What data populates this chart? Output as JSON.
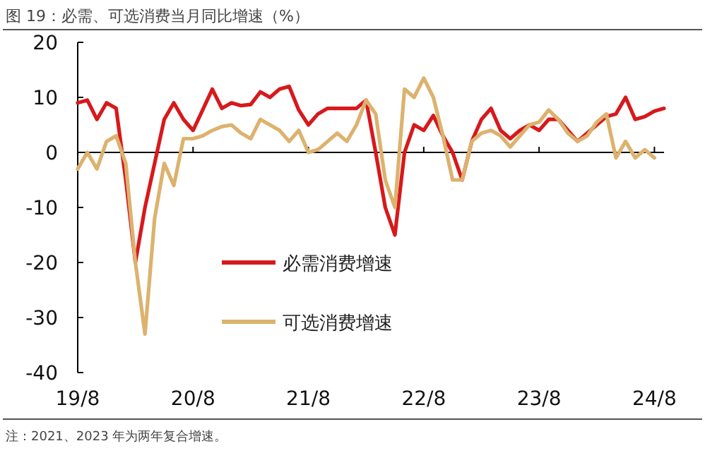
{
  "chart_data": {
    "type": "line",
    "title": "图 19：必需、可选消费当月同比增速（%）",
    "annotations": [
      "注：2021、2023 年为两年复合增速。"
    ],
    "x": [
      "2019-08",
      "2019-09",
      "2019-10",
      "2019-11",
      "2019-12",
      "2020-01",
      "2020-02",
      "2020-03",
      "2020-04",
      "2020-05",
      "2020-06",
      "2020-07",
      "2020-08",
      "2020-09",
      "2020-10",
      "2020-11",
      "2020-12",
      "2021-01",
      "2021-02",
      "2021-03",
      "2021-04",
      "2021-05",
      "2021-06",
      "2021-07",
      "2021-08",
      "2021-09",
      "2021-10",
      "2021-11",
      "2021-12",
      "2022-01",
      "2022-02",
      "2022-03",
      "2022-04",
      "2022-05",
      "2022-06",
      "2022-07",
      "2022-08",
      "2022-09",
      "2022-10",
      "2022-11",
      "2022-12",
      "2023-01",
      "2023-02",
      "2023-03",
      "2023-04",
      "2023-05",
      "2023-06",
      "2023-07",
      "2023-08",
      "2023-09",
      "2023-10",
      "2023-11",
      "2023-12",
      "2024-01",
      "2024-02",
      "2024-03",
      "2024-04",
      "2024-05",
      "2024-06",
      "2024-07",
      "2024-08",
      "2024-09"
    ],
    "series": [
      {
        "name": "必需消费增速",
        "color": "#d7191c",
        "values": [
          9,
          9.5,
          6,
          9,
          8,
          -5,
          -20,
          -10,
          -2,
          6,
          9,
          6,
          4,
          7.7,
          11.5,
          8,
          9,
          8.5,
          8.7,
          11,
          10,
          11.5,
          12,
          7.7,
          5,
          7,
          8,
          8,
          8,
          8,
          9.5,
          0,
          -10,
          -15,
          0,
          5,
          4,
          6.7,
          3,
          0,
          -5,
          2,
          6,
          8,
          4,
          2.5,
          4,
          5,
          4,
          6,
          6,
          4,
          2,
          3.5,
          5,
          6.5,
          7,
          10,
          6,
          6.5,
          7.5,
          8
        ]
      },
      {
        "name": "可选消费增速",
        "color": "#dcb26e",
        "values": [
          -3,
          0,
          -3,
          2,
          3,
          -2,
          -20,
          -33,
          -12,
          -2,
          -6,
          2.5,
          2.5,
          3,
          4,
          4.7,
          5,
          3.5,
          2.5,
          6,
          5,
          4,
          2,
          4,
          0,
          0.5,
          2,
          3.5,
          2,
          5,
          9.5,
          7,
          -5,
          -10,
          11.5,
          10,
          13.5,
          10,
          3,
          -5,
          -5,
          2,
          3.5,
          4,
          3,
          1,
          3,
          5,
          5.5,
          7.7,
          6,
          3.5,
          2,
          3,
          5.5,
          7,
          -1,
          2,
          -1,
          0.5,
          -1,
          null
        ]
      }
    ],
    "xlim": [
      "2019-08",
      "2024-09"
    ],
    "xticks": [
      {
        "value": "2019-08",
        "label": "19/8"
      },
      {
        "value": "2020-08",
        "label": "20/8"
      },
      {
        "value": "2021-08",
        "label": "21/8"
      },
      {
        "value": "2022-08",
        "label": "22/8"
      },
      {
        "value": "2023-08",
        "label": "23/8"
      },
      {
        "value": "2024-08",
        "label": "24/8"
      }
    ],
    "ylim": [
      -40,
      20
    ],
    "yticks": [
      -40,
      -30,
      -20,
      -10,
      0,
      10,
      20
    ],
    "legend": "bottom"
  }
}
